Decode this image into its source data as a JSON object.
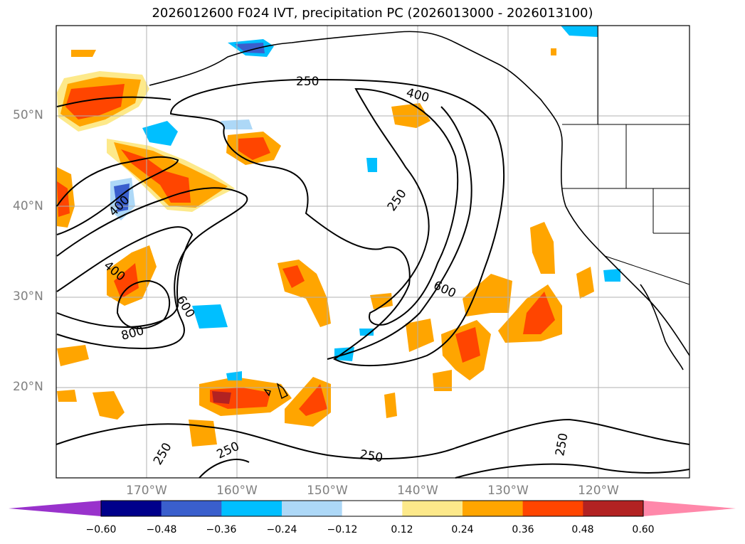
{
  "title": "2026012600 F024 IVT, precipitation PC (2026013000 - 2026013100)",
  "lat_labels": [
    "50°N",
    "40°N",
    "30°N",
    "20°N"
  ],
  "lon_labels": [
    "170°W",
    "160°W",
    "150°W",
    "140°W",
    "130°W",
    "120°W"
  ],
  "contour_labels": [
    "250",
    "400",
    "250",
    "400",
    "400",
    "600",
    "800",
    "600",
    "250",
    "250",
    "250",
    "250"
  ],
  "colorbar": {
    "ticks": [
      "−0.60",
      "−0.48",
      "−0.36",
      "−0.24",
      "−0.12",
      "0.12",
      "0.24",
      "0.36",
      "0.48",
      "0.60"
    ],
    "colors": [
      "#9932cc",
      "#00008b",
      "#3a5fcd",
      "#00bfff",
      "#add8f7",
      "#ffffff",
      "#fde98a",
      "#ffa500",
      "#ff4500",
      "#b22222",
      "#ff88aa"
    ]
  },
  "map_extent": {
    "lon_min": -180,
    "lon_max": -110,
    "lat_min": 10,
    "lat_max": 60
  }
}
